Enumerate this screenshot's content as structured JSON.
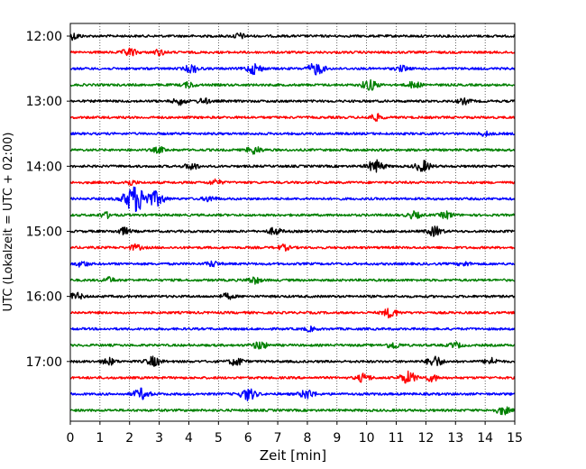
{
  "chart_data": {
    "type": "line",
    "title": "",
    "xlabel": "Zeit  [min]",
    "ylabel": "UTC (Lokalzeit = UTC + 02:00)",
    "xlim": [
      0,
      15
    ],
    "x_ticks": [
      "0",
      "1",
      "2",
      "3",
      "4",
      "5",
      "6",
      "7",
      "8",
      "9",
      "10",
      "11",
      "12",
      "13",
      "14",
      "15"
    ],
    "y_tick_labels": [
      "12:00",
      "13:00",
      "14:00",
      "15:00",
      "16:00",
      "17:00"
    ],
    "grid": "vertical dotted",
    "trace_colors": [
      "#000000",
      "#ff0000",
      "#0000ff",
      "#008000"
    ],
    "trace_minutes": 15,
    "traces": [
      {
        "start": "12:00",
        "color": "#000000",
        "events": [
          [
            0.1,
            0.5
          ],
          [
            5.7,
            0.4
          ]
        ]
      },
      {
        "start": "12:15",
        "color": "#ff0000",
        "events": [
          [
            2.0,
            0.6
          ],
          [
            3.0,
            0.4
          ]
        ]
      },
      {
        "start": "12:30",
        "color": "#0000ff",
        "events": [
          [
            4.1,
            0.6
          ],
          [
            6.2,
            0.8
          ],
          [
            8.3,
            0.9
          ],
          [
            11.2,
            0.4
          ]
        ]
      },
      {
        "start": "12:45",
        "color": "#008000",
        "events": [
          [
            4.0,
            0.4
          ],
          [
            10.1,
            0.8
          ],
          [
            11.6,
            0.5
          ]
        ]
      },
      {
        "start": "13:00",
        "color": "#000000",
        "events": [
          [
            3.7,
            0.5
          ],
          [
            4.5,
            0.4
          ],
          [
            13.3,
            0.4
          ]
        ]
      },
      {
        "start": "13:15",
        "color": "#ff0000",
        "events": [
          [
            10.3,
            0.5
          ]
        ]
      },
      {
        "start": "13:30",
        "color": "#0000ff",
        "events": [
          [
            14.0,
            0.3
          ]
        ]
      },
      {
        "start": "13:45",
        "color": "#008000",
        "events": [
          [
            3.0,
            0.4
          ],
          [
            6.2,
            0.6
          ]
        ]
      },
      {
        "start": "14:00",
        "color": "#000000",
        "events": [
          [
            4.1,
            0.5
          ],
          [
            10.3,
            0.9
          ],
          [
            11.9,
            0.8
          ]
        ]
      },
      {
        "start": "14:15",
        "color": "#ff0000",
        "events": [
          [
            2.0,
            0.4
          ],
          [
            4.9,
            0.4
          ]
        ]
      },
      {
        "start": "14:30",
        "color": "#0000ff",
        "events": [
          [
            2.2,
            2.0
          ],
          [
            2.9,
            1.0
          ],
          [
            4.7,
            0.4
          ]
        ]
      },
      {
        "start": "14:45",
        "color": "#008000",
        "events": [
          [
            1.2,
            0.4
          ],
          [
            11.6,
            0.5
          ],
          [
            12.7,
            0.5
          ]
        ]
      },
      {
        "start": "15:00",
        "color": "#000000",
        "events": [
          [
            1.8,
            0.5
          ],
          [
            6.9,
            0.5
          ],
          [
            12.3,
            0.7
          ]
        ]
      },
      {
        "start": "15:15",
        "color": "#ff0000",
        "events": [
          [
            2.2,
            0.4
          ],
          [
            7.2,
            0.4
          ]
        ]
      },
      {
        "start": "15:30",
        "color": "#0000ff",
        "events": [
          [
            0.4,
            0.4
          ],
          [
            4.8,
            0.4
          ],
          [
            13.3,
            0.3
          ]
        ]
      },
      {
        "start": "15:45",
        "color": "#008000",
        "events": [
          [
            1.3,
            0.4
          ],
          [
            6.2,
            0.5
          ]
        ]
      },
      {
        "start": "16:00",
        "color": "#000000",
        "events": [
          [
            0.2,
            0.5
          ],
          [
            5.3,
            0.4
          ]
        ]
      },
      {
        "start": "16:15",
        "color": "#ff0000",
        "events": [
          [
            10.8,
            0.7
          ]
        ]
      },
      {
        "start": "16:30",
        "color": "#0000ff",
        "events": [
          [
            8.1,
            0.3
          ]
        ]
      },
      {
        "start": "16:45",
        "color": "#008000",
        "events": [
          [
            6.4,
            0.6
          ],
          [
            10.9,
            0.5
          ],
          [
            13.0,
            0.4
          ]
        ]
      },
      {
        "start": "17:00",
        "color": "#000000",
        "events": [
          [
            1.3,
            0.5
          ],
          [
            2.8,
            0.7
          ],
          [
            5.6,
            0.6
          ],
          [
            12.3,
            0.8
          ],
          [
            14.2,
            0.5
          ]
        ]
      },
      {
        "start": "17:15",
        "color": "#ff0000",
        "events": [
          [
            9.9,
            0.6
          ],
          [
            11.4,
            0.9
          ],
          [
            12.2,
            0.5
          ]
        ]
      },
      {
        "start": "17:30",
        "color": "#0000ff",
        "events": [
          [
            2.4,
            0.8
          ],
          [
            6.0,
            0.9
          ],
          [
            8.0,
            0.7
          ]
        ]
      },
      {
        "start": "17:45",
        "color": "#008000",
        "events": [
          [
            14.6,
            0.6
          ]
        ]
      }
    ]
  }
}
